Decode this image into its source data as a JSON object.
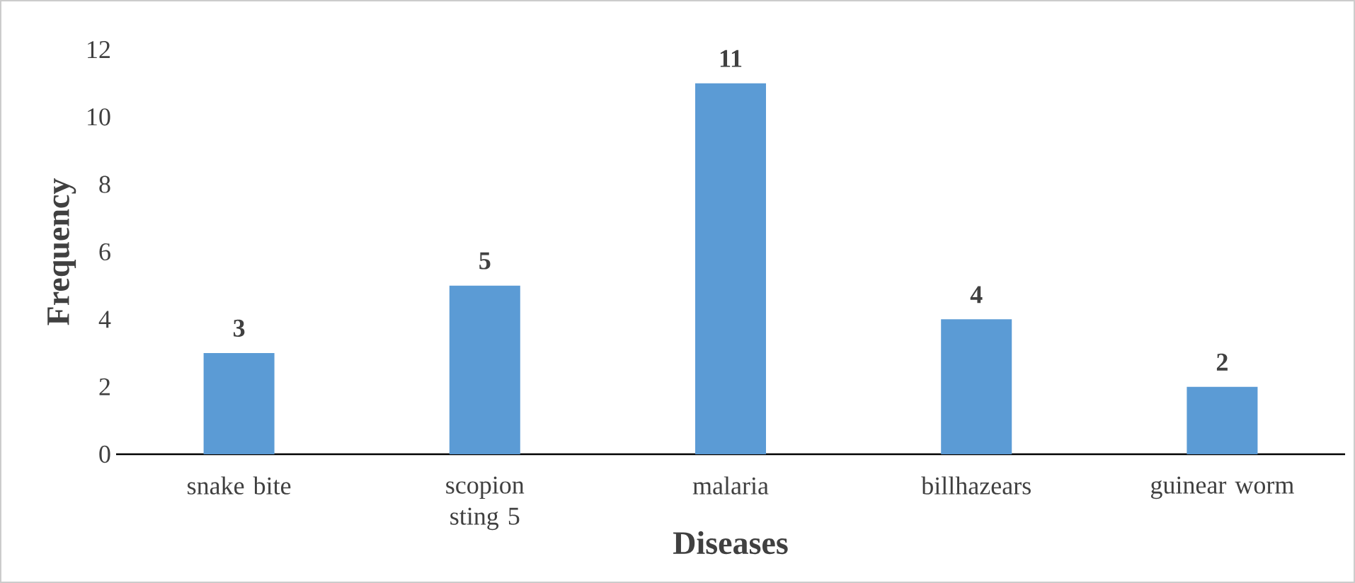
{
  "chart_data": {
    "type": "bar",
    "xlabel": "Diseases",
    "ylabel": "Frequency",
    "categories": [
      "snake bite",
      "scopion sting 5",
      "malaria",
      "billhazears",
      "guinear worm"
    ],
    "values": [
      3,
      5,
      11,
      4,
      2
    ],
    "color": "#5b9bd5",
    "ylim": [
      0,
      12
    ],
    "yticks": [
      0,
      2,
      4,
      6,
      8,
      10,
      12
    ],
    "data_labels": true
  }
}
